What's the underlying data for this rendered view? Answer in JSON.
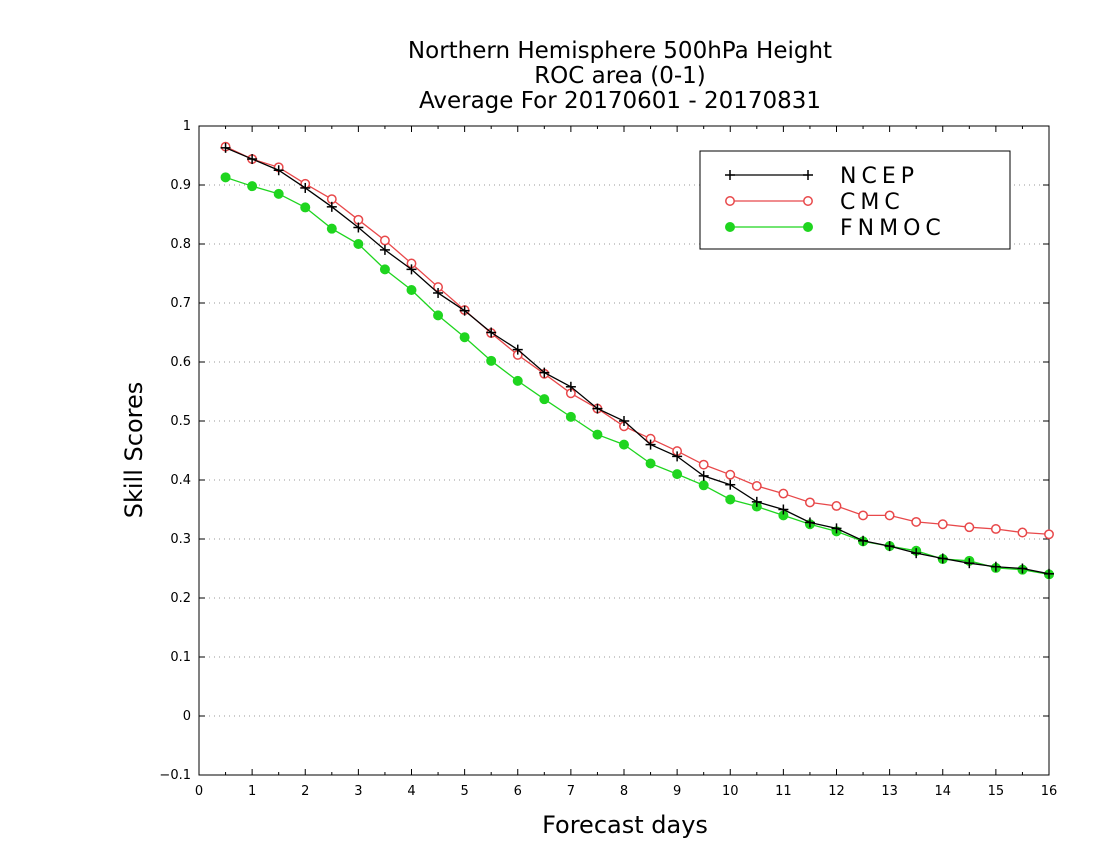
{
  "chart_data": {
    "type": "line",
    "title_lines": [
      "Northern Hemisphere 500hPa Height",
      "ROC area (0-1)",
      "Average For 20170601 - 20170831"
    ],
    "xlabel": "Forecast days",
    "ylabel": "Skill Scores",
    "xlim": [
      0,
      16
    ],
    "ylim": [
      -0.1,
      1
    ],
    "x_ticks": [
      "0",
      "1",
      "2",
      "3",
      "4",
      "5",
      "6",
      "7",
      "8",
      "9",
      "10",
      "11",
      "12",
      "13",
      "14",
      "15",
      "16"
    ],
    "y_ticks": [
      "−0.1",
      "0",
      "0.1",
      "0.2",
      "0.3",
      "0.4",
      "0.5",
      "0.6",
      "0.7",
      "0.8",
      "0.9",
      "1"
    ],
    "grid": "horizontal dotted",
    "legend_position": "top-right",
    "x": [
      0.5,
      1,
      1.5,
      2,
      2.5,
      3,
      3.5,
      4,
      4.5,
      5,
      5.5,
      6,
      6.5,
      7,
      7.5,
      8,
      8.5,
      9,
      9.5,
      10,
      10.5,
      11,
      11.5,
      12,
      12.5,
      13,
      13.5,
      14,
      14.5,
      15,
      15.5,
      16
    ],
    "series": [
      {
        "name": "NCEP",
        "color": "#000000",
        "marker": "plus",
        "values": [
          0.963,
          0.944,
          0.925,
          0.895,
          0.863,
          0.828,
          0.79,
          0.757,
          0.717,
          0.687,
          0.65,
          0.621,
          0.582,
          0.558,
          0.521,
          0.5,
          0.46,
          0.44,
          0.407,
          0.392,
          0.363,
          0.35,
          0.328,
          0.318,
          0.297,
          0.288,
          0.276,
          0.267,
          0.259,
          0.253,
          0.25,
          0.241
        ]
      },
      {
        "name": "CMC",
        "color": "#e8484a",
        "marker": "open-circle",
        "values": [
          0.965,
          0.944,
          0.93,
          0.902,
          0.876,
          0.841,
          0.806,
          0.767,
          0.727,
          0.688,
          0.649,
          0.612,
          0.58,
          0.547,
          0.521,
          0.491,
          0.47,
          0.449,
          0.426,
          0.409,
          0.39,
          0.377,
          0.362,
          0.356,
          0.34,
          0.34,
          0.329,
          0.325,
          0.32,
          0.317,
          0.311,
          0.308
        ]
      },
      {
        "name": "FNMOC",
        "color": "#1fd51f",
        "marker": "filled-circle",
        "values": [
          0.913,
          0.898,
          0.885,
          0.862,
          0.826,
          0.8,
          0.757,
          0.722,
          0.679,
          0.642,
          0.602,
          0.568,
          0.537,
          0.507,
          0.477,
          0.46,
          0.428,
          0.41,
          0.391,
          0.367,
          0.355,
          0.34,
          0.325,
          0.313,
          0.296,
          0.288,
          0.28,
          0.266,
          0.263,
          0.251,
          0.248,
          0.24
        ]
      }
    ]
  }
}
